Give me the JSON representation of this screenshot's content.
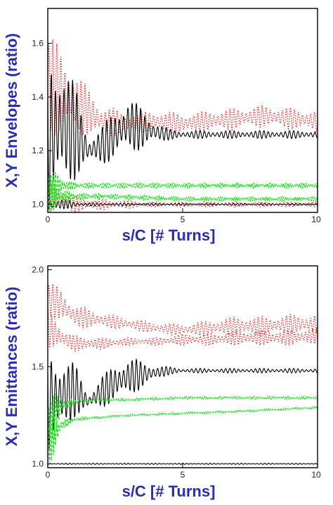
{
  "chart_data": [
    {
      "type": "line",
      "ylabel": "X,Y Envelopes (ratio)",
      "xlabel": "s/C [# Turns]",
      "xlim": [
        0,
        10
      ],
      "ylim": [
        0.97,
        1.73
      ],
      "xticks": [
        "0",
        "5",
        "10"
      ],
      "yticks": [
        "1.0",
        "1.2",
        "1.4",
        "1.6"
      ],
      "ytick_values": [
        1.0,
        1.2,
        1.4,
        1.6
      ],
      "grid": false,
      "series": [
        {
          "color": "#e02020",
          "style": "dotted",
          "x": [
            0,
            0.5,
            1,
            2,
            3,
            4,
            5,
            6,
            7,
            8,
            9,
            10
          ],
          "values": [
            1.45,
            1.42,
            1.38,
            1.31,
            1.3,
            1.31,
            1.3,
            1.31,
            1.32,
            1.33,
            1.32,
            1.31
          ],
          "osc": [
            0.2,
            0.16,
            0.12,
            0.06,
            0.04,
            0.04,
            0.04,
            0.04,
            0.04,
            0.04,
            0.04,
            0.04
          ]
        },
        {
          "color": "#e02020",
          "style": "dotted",
          "x": [
            0,
            0.5,
            1,
            2,
            3,
            4,
            5,
            6,
            7,
            8,
            9,
            10
          ],
          "values": [
            1.03,
            1.02,
            1.0,
            1.0,
            1.0,
            1.0,
            1.0,
            1.0,
            1.0,
            1.0,
            1.0,
            1.0
          ],
          "osc": [
            0.06,
            0.04,
            0.03,
            0.02,
            0.015,
            0.01,
            0.01,
            0.01,
            0.01,
            0.01,
            0.01,
            0.01
          ]
        },
        {
          "color": "#000000",
          "style": "solid",
          "x": [
            0,
            0.5,
            1,
            1.5,
            2,
            2.5,
            3,
            3.5,
            4,
            4.5,
            5,
            6,
            7,
            8,
            9,
            10
          ],
          "values": [
            1.25,
            1.3,
            1.27,
            1.2,
            1.22,
            1.26,
            1.3,
            1.28,
            1.27,
            1.26,
            1.26,
            1.26,
            1.26,
            1.26,
            1.26,
            1.26
          ],
          "osc": [
            0.32,
            0.28,
            0.18,
            0.05,
            0.07,
            0.1,
            0.1,
            0.08,
            0.04,
            0.02,
            0.015,
            0.015,
            0.015,
            0.015,
            0.015,
            0.015
          ]
        },
        {
          "color": "#000000",
          "style": "solid",
          "x": [
            0,
            1,
            2,
            5,
            10
          ],
          "values": [
            1.0,
            1.0,
            1.0,
            1.0,
            1.0
          ],
          "osc": [
            0.03,
            0.01,
            0.005,
            0.004,
            0.004
          ]
        },
        {
          "color": "#22dd22",
          "style": "dashed",
          "x": [
            0,
            0.5,
            1,
            2,
            5,
            10
          ],
          "values": [
            1.07,
            1.07,
            1.07,
            1.07,
            1.07,
            1.07
          ],
          "osc": [
            0.08,
            0.03,
            0.012,
            0.01,
            0.01,
            0.01
          ]
        },
        {
          "color": "#22dd22",
          "style": "dashed",
          "x": [
            0,
            0.5,
            1,
            2,
            5,
            10
          ],
          "values": [
            1.03,
            1.03,
            1.03,
            1.03,
            1.02,
            1.02
          ],
          "osc": [
            0.07,
            0.03,
            0.012,
            0.01,
            0.008,
            0.008
          ]
        }
      ]
    },
    {
      "type": "line",
      "ylabel": "X,Y Emittances (ratio)",
      "xlabel": "s/C [# Turns]",
      "xlim": [
        0,
        10
      ],
      "ylim": [
        0.98,
        2.02
      ],
      "xticks": [
        "0",
        "5",
        "10"
      ],
      "yticks": [
        "1.0",
        "1.5",
        "2.0"
      ],
      "ytick_values": [
        1.0,
        1.5,
        2.0
      ],
      "grid": false,
      "series": [
        {
          "color": "#e02020",
          "style": "dotted",
          "x": [
            0,
            0.5,
            1,
            2,
            3,
            4,
            5,
            6,
            7,
            8,
            9,
            10
          ],
          "values": [
            1.85,
            1.82,
            1.76,
            1.74,
            1.72,
            1.7,
            1.69,
            1.7,
            1.71,
            1.71,
            1.72,
            1.72
          ],
          "osc": [
            0.1,
            0.08,
            0.06,
            0.04,
            0.03,
            0.03,
            0.03,
            0.04,
            0.05,
            0.05,
            0.05,
            0.05
          ]
        },
        {
          "color": "#e02020",
          "style": "dotted",
          "x": [
            0,
            0.5,
            1,
            2,
            3,
            4,
            5,
            6,
            7,
            8,
            9,
            10
          ],
          "values": [
            1.7,
            1.65,
            1.62,
            1.62,
            1.63,
            1.63,
            1.64,
            1.64,
            1.65,
            1.65,
            1.65,
            1.66
          ],
          "osc": [
            0.1,
            0.06,
            0.04,
            0.03,
            0.02,
            0.02,
            0.03,
            0.03,
            0.04,
            0.04,
            0.04,
            0.04
          ]
        },
        {
          "color": "#000000",
          "style": "solid",
          "x": [
            0,
            0.5,
            1,
            1.5,
            2,
            2.5,
            3,
            3.5,
            4,
            4.5,
            5,
            6,
            7,
            8,
            9,
            10
          ],
          "values": [
            1.32,
            1.35,
            1.38,
            1.32,
            1.37,
            1.42,
            1.45,
            1.46,
            1.47,
            1.48,
            1.48,
            1.48,
            1.48,
            1.48,
            1.48,
            1.48
          ],
          "osc": [
            0.3,
            0.22,
            0.14,
            0.04,
            0.08,
            0.1,
            0.1,
            0.07,
            0.04,
            0.02,
            0.012,
            0.012,
            0.012,
            0.012,
            0.012,
            0.012
          ]
        },
        {
          "color": "#000000",
          "style": "solid",
          "x": [
            0,
            10
          ],
          "values": [
            1.0,
            1.0
          ],
          "osc": [
            0.003,
            0.003
          ]
        },
        {
          "color": "#22dd22",
          "style": "dashed",
          "x": [
            0,
            0.5,
            1,
            2,
            3,
            5,
            7,
            10
          ],
          "values": [
            1.2,
            1.3,
            1.32,
            1.33,
            1.33,
            1.34,
            1.34,
            1.34
          ],
          "osc": [
            0.2,
            0.04,
            0.01,
            0.008,
            0.008,
            0.008,
            0.008,
            0.008
          ]
        },
        {
          "color": "#22dd22",
          "style": "dashed",
          "x": [
            0,
            0.5,
            1,
            2,
            3,
            5,
            7,
            10
          ],
          "values": [
            1.1,
            1.2,
            1.23,
            1.24,
            1.25,
            1.26,
            1.27,
            1.29
          ],
          "osc": [
            0.15,
            0.03,
            0.01,
            0.006,
            0.006,
            0.006,
            0.006,
            0.006
          ]
        }
      ]
    }
  ]
}
